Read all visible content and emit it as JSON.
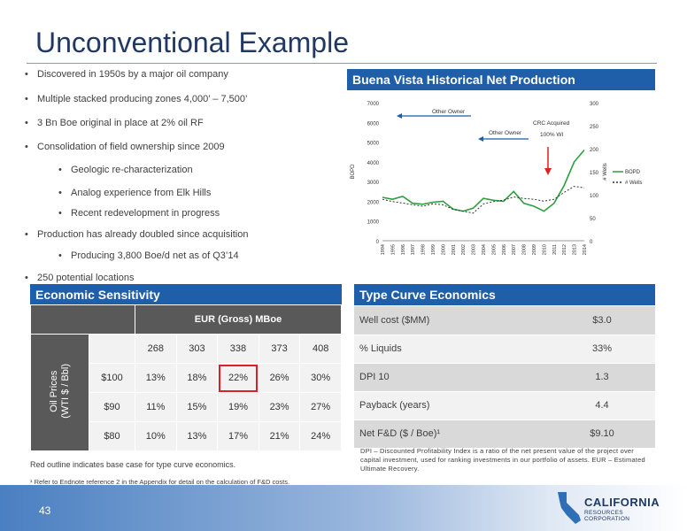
{
  "title": "Unconventional Example",
  "bullets": [
    {
      "text": "Discovered in 1950s by a major oil company",
      "level": 1
    },
    {
      "text": "Multiple stacked producing zones 4,000’ – 7,500’",
      "level": 1
    },
    {
      "text": "3 Bn Boe original in place at 2% oil RF",
      "level": 1
    },
    {
      "text": "Consolidation of field ownership since 2009",
      "level": 1
    },
    {
      "text": "Geologic re-characterization",
      "level": 2
    },
    {
      "text": "Analog experience from Elk Hills",
      "level": 2
    },
    {
      "text": "Recent redevelopment in progress",
      "level": 2
    },
    {
      "text": "Production has already doubled since acquisition",
      "level": 1
    },
    {
      "text": "Producing 3,800 Boe/d net as of Q3’14",
      "level": 2
    },
    {
      "text": "250 potential locations",
      "level": 1
    }
  ],
  "chart_panel_title": "Buena Vista Historical Net Production",
  "chart_data": {
    "type": "line",
    "x": [
      "1994",
      "1995",
      "1996",
      "1997",
      "1998",
      "1999",
      "2000",
      "2001",
      "2002",
      "2003",
      "2004",
      "2005",
      "2006",
      "2007",
      "2008",
      "2009",
      "2010",
      "2011",
      "2012",
      "2013",
      "2014"
    ],
    "ylabel": "BOPD",
    "y2label": "# Wells",
    "ylim": [
      0,
      7000
    ],
    "y2lim": [
      0,
      300
    ],
    "yticks": [
      "0",
      "1000",
      "2000",
      "3000",
      "4000",
      "5000",
      "6000",
      "7000"
    ],
    "y2ticks": [
      "0",
      "50",
      "100",
      "150",
      "200",
      "250",
      "300"
    ],
    "series": [
      {
        "name": "BOPD",
        "axis": "left",
        "color": "#2e9e3e",
        "style": "solid",
        "values": [
          2200,
          2100,
          2250,
          1900,
          1850,
          1950,
          2000,
          1600,
          1500,
          1650,
          2150,
          2050,
          2000,
          2500,
          1900,
          1750,
          1500,
          1900,
          2800,
          4000,
          4600
        ]
      },
      {
        "name": "# Wells",
        "axis": "right",
        "color": "#333333",
        "style": "dashed",
        "values": [
          90,
          85,
          82,
          78,
          75,
          80,
          78,
          68,
          64,
          60,
          80,
          85,
          88,
          95,
          92,
          90,
          86,
          90,
          105,
          118,
          115
        ]
      }
    ],
    "annotations": {
      "other_owner_1": "Other Owner",
      "other_owner_2": "Other Owner",
      "crc_line1": "CRC Acquired",
      "crc_line2": "100% WI"
    },
    "legend_position": "right"
  },
  "sensitivity": {
    "title": "Economic Sensitivity",
    "header": "EUR (Gross) MBoe",
    "axis_label_line1": "Oil Prices",
    "axis_label_line2": "(WTI $ / Bbl)",
    "columns": [
      "268",
      "303",
      "338",
      "373",
      "408"
    ],
    "rows": [
      {
        "price": "$100",
        "values": [
          "13%",
          "18%",
          "22%",
          "26%",
          "30%"
        ]
      },
      {
        "price": "$90",
        "values": [
          "11%",
          "15%",
          "19%",
          "23%",
          "27%"
        ]
      },
      {
        "price": "$80",
        "values": [
          "10%",
          "13%",
          "17%",
          "21%",
          "24%"
        ]
      }
    ],
    "highlight_color": "#e02020",
    "note": "Red outline indicates base case for type curve economics."
  },
  "type_curve": {
    "title": "Type Curve Economics",
    "rows": [
      {
        "label": "Well cost ($MM)",
        "value": "$3.0"
      },
      {
        "label": "% Liquids",
        "value": "33%"
      },
      {
        "label": "DPI 10",
        "value": "1.3"
      },
      {
        "label": "Payback (years)",
        "value": "4.4"
      },
      {
        "label": "Net F&D ($ / Boe)¹",
        "value": "$9.10"
      }
    ],
    "note": "DPI – Discounted Profitability Index is a ratio of the net present value of the project over capital investment, used for ranking investments in our portfolio of assets. EUR – Estimated Ultimate Recovery."
  },
  "footnote": "¹ Refer to Endnote reference 2 in the Appendix for detail on the calculation of F&D costs.",
  "page_number": "43",
  "logo": {
    "line1": "CALIFORNIA",
    "line2": "RESOURCES CORPORATION"
  },
  "colors": {
    "accent": "#1f5ea8",
    "title": "#1f3864",
    "bopd": "#2e9e3e",
    "highlight": "#e02020"
  }
}
